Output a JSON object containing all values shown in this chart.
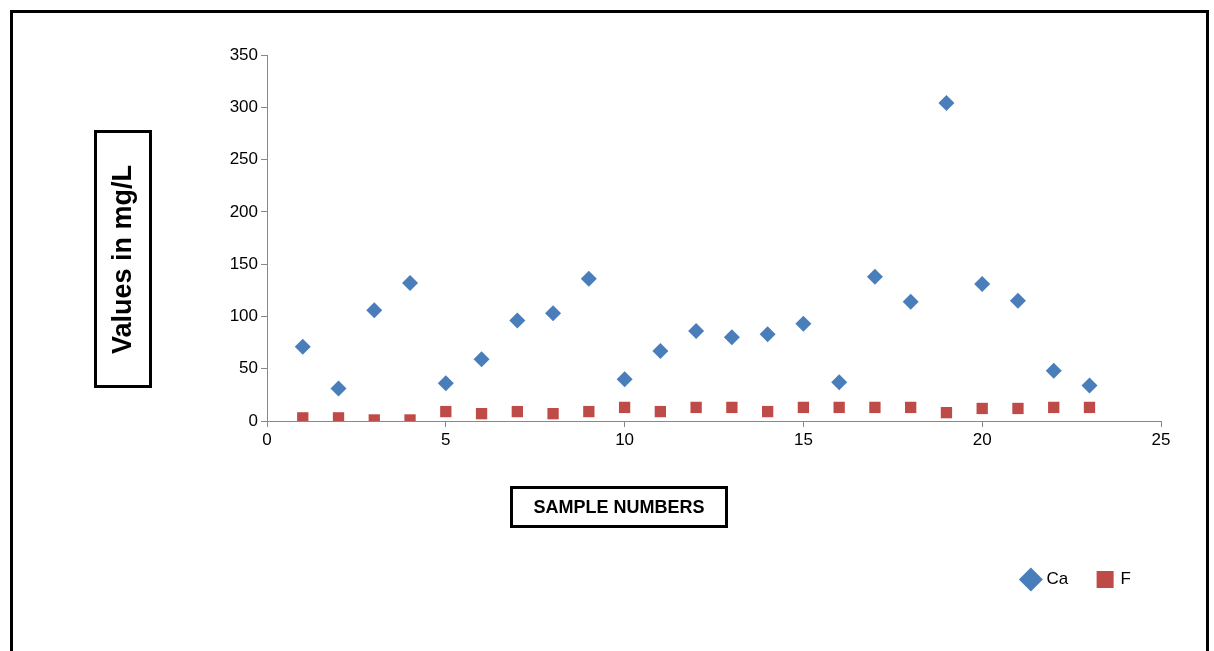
{
  "chart_data": {
    "type": "scatter",
    "xlabel": "SAMPLE NUMBERS",
    "ylabel": "Values in mg/L",
    "x": [
      1,
      2,
      3,
      4,
      5,
      6,
      7,
      8,
      9,
      10,
      11,
      12,
      13,
      14,
      15,
      16,
      17,
      18,
      19,
      20,
      21,
      22,
      23
    ],
    "series": [
      {
        "name": "Ca",
        "color": "#4a7ebb",
        "marker": "diamond",
        "values": [
          71,
          31,
          106,
          132,
          36,
          59,
          96,
          103,
          136,
          40,
          67,
          86,
          80,
          83,
          93,
          37,
          138,
          114,
          304,
          131,
          115,
          48,
          34
        ]
      },
      {
        "name": "F",
        "color": "#be4b48",
        "marker": "square",
        "values": [
          3,
          3,
          1,
          1,
          9,
          7,
          9,
          7,
          9,
          13,
          9,
          13,
          13,
          9,
          13,
          13,
          13,
          13,
          8,
          12,
          12,
          13,
          13
        ]
      }
    ],
    "xlim": [
      0,
      25
    ],
    "xticks": [
      0,
      5,
      10,
      15,
      20,
      25
    ],
    "ylim": [
      0,
      350
    ],
    "yticks": [
      0,
      50,
      100,
      150,
      200,
      250,
      300,
      350
    ],
    "grid": false,
    "legend": "bottom right"
  }
}
